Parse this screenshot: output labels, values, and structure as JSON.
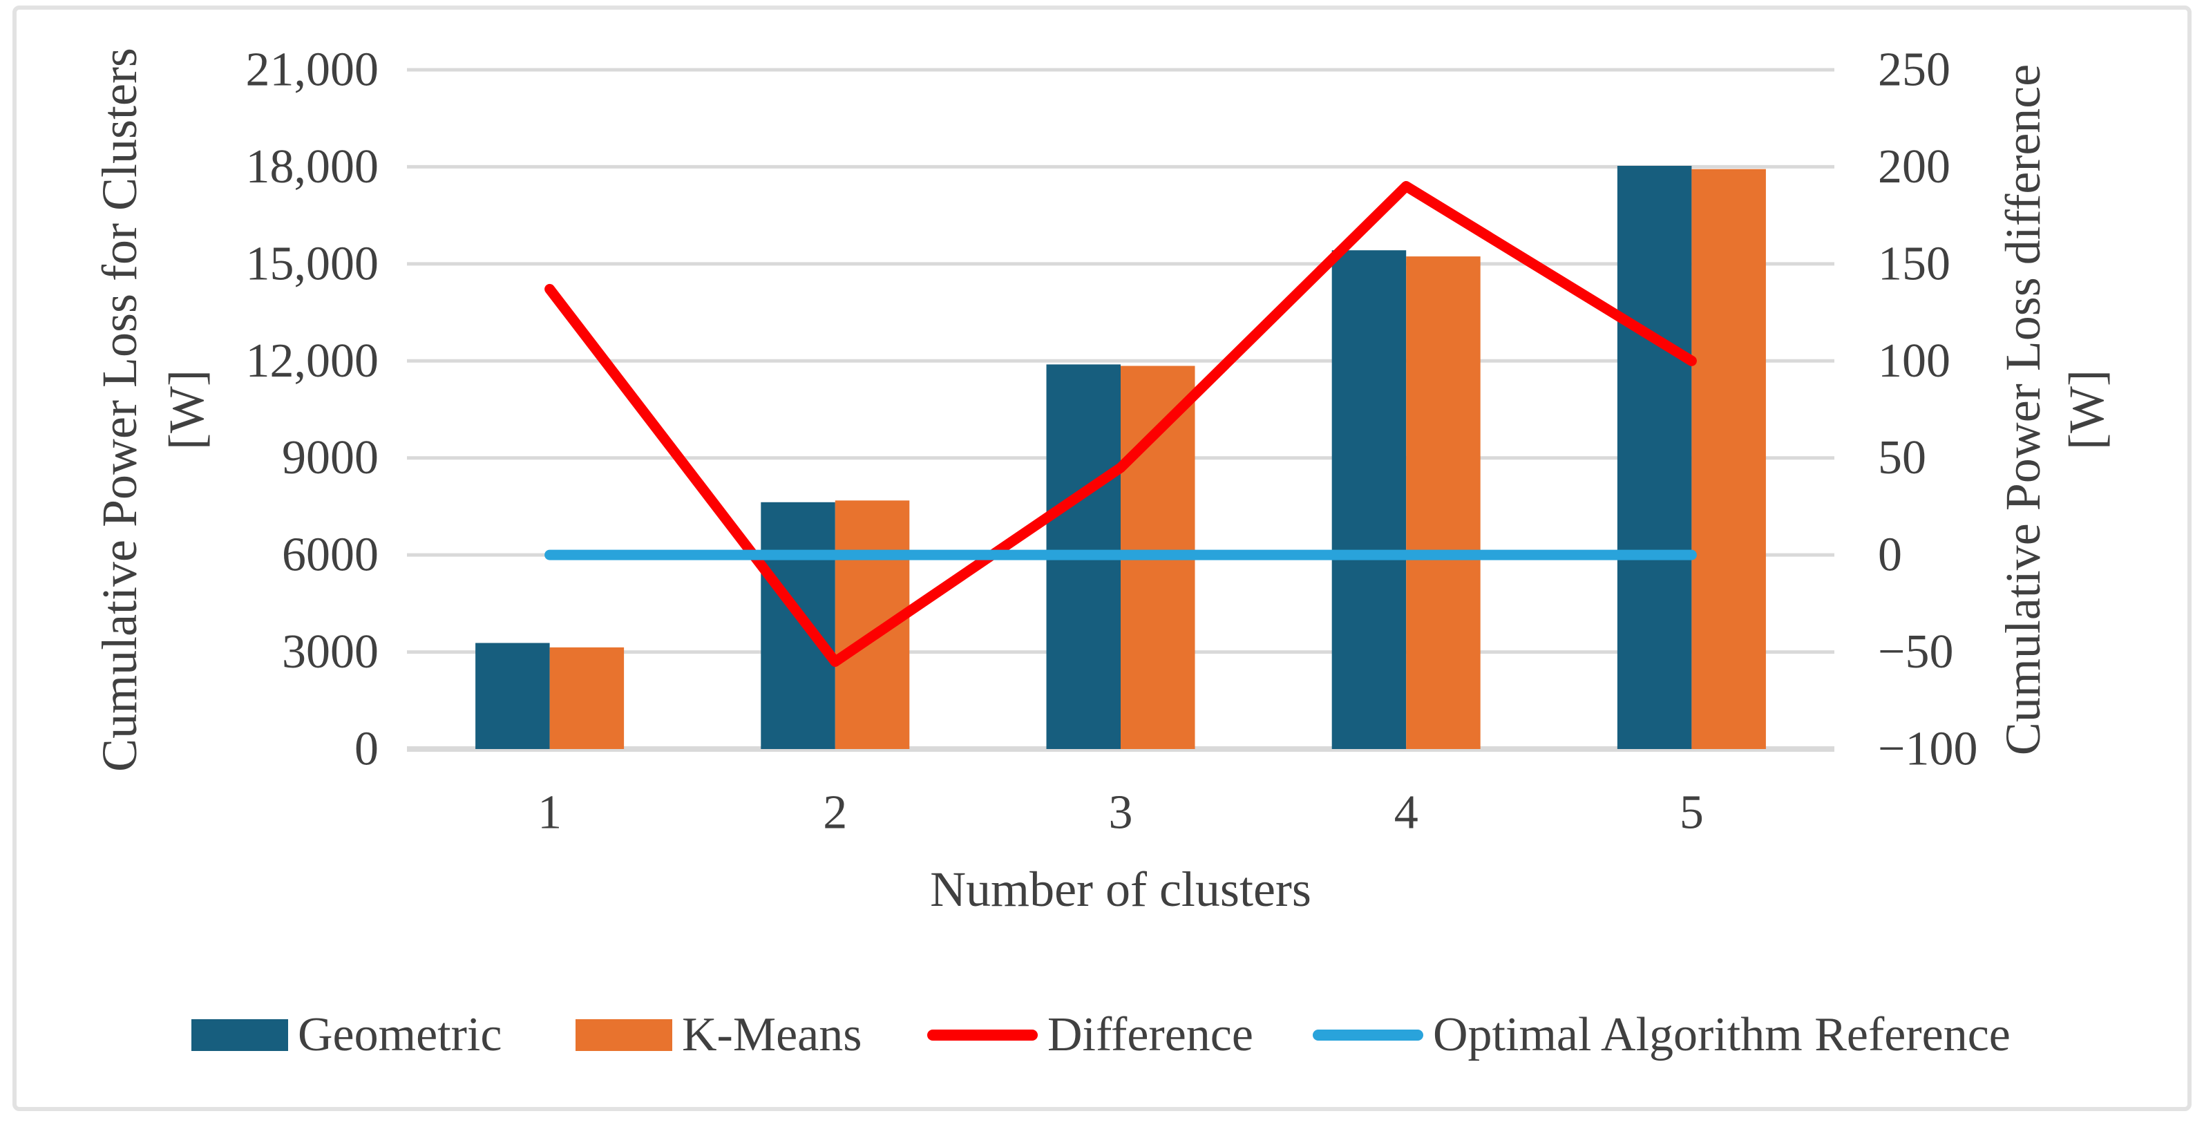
{
  "figure": {
    "background": "#ffffff",
    "border_color": "#e2e2e2",
    "text_color": "#404040"
  },
  "chart_data": {
    "type": "bar",
    "subtype": "dual-axis bar + line combo",
    "categories": [
      "1",
      "2",
      "3",
      "4",
      "5"
    ],
    "series": [
      {
        "name": "Geometric",
        "kind": "bar",
        "axis": "left",
        "color": "#175e7e",
        "values": [
          3280,
          7630,
          11890,
          15420,
          18030
        ]
      },
      {
        "name": "K-Means",
        "kind": "bar",
        "axis": "left",
        "color": "#e8732e",
        "values": [
          3143,
          7685,
          11845,
          15230,
          17930
        ]
      },
      {
        "name": "Difference",
        "kind": "line",
        "axis": "right",
        "color": "#fd0000",
        "values": [
          137,
          -55,
          45,
          190,
          100
        ]
      },
      {
        "name": "Optimal Algorithm Reference",
        "kind": "line",
        "axis": "right",
        "color": "#29a3db",
        "values": [
          0,
          0,
          0,
          0,
          0
        ]
      }
    ],
    "x_axis": {
      "title": "Number of clusters"
    },
    "left_axis": {
      "title": "Cumulative Power Loss for Clusters",
      "unit": "[W]",
      "range": [
        0,
        21000
      ],
      "tick_values": [
        21000,
        18000,
        15000,
        12000,
        9000,
        6000,
        3000,
        0
      ],
      "tick_labels": [
        "21,000",
        "18,000",
        "15,000",
        "12,000",
        "9000",
        "6000",
        "3000",
        "0"
      ]
    },
    "right_axis": {
      "title": "Cumulative Power Loss difference",
      "unit": "[W]",
      "range": [
        -100,
        250
      ],
      "tick_values": [
        250,
        200,
        150,
        100,
        50,
        0,
        -50,
        -100
      ],
      "tick_labels": [
        "250",
        "200",
        "150",
        "100",
        "50",
        "0",
        "−50",
        "−100"
      ]
    },
    "grid": true,
    "gridline_color": "#d9d9d9",
    "legend_position": "bottom"
  }
}
